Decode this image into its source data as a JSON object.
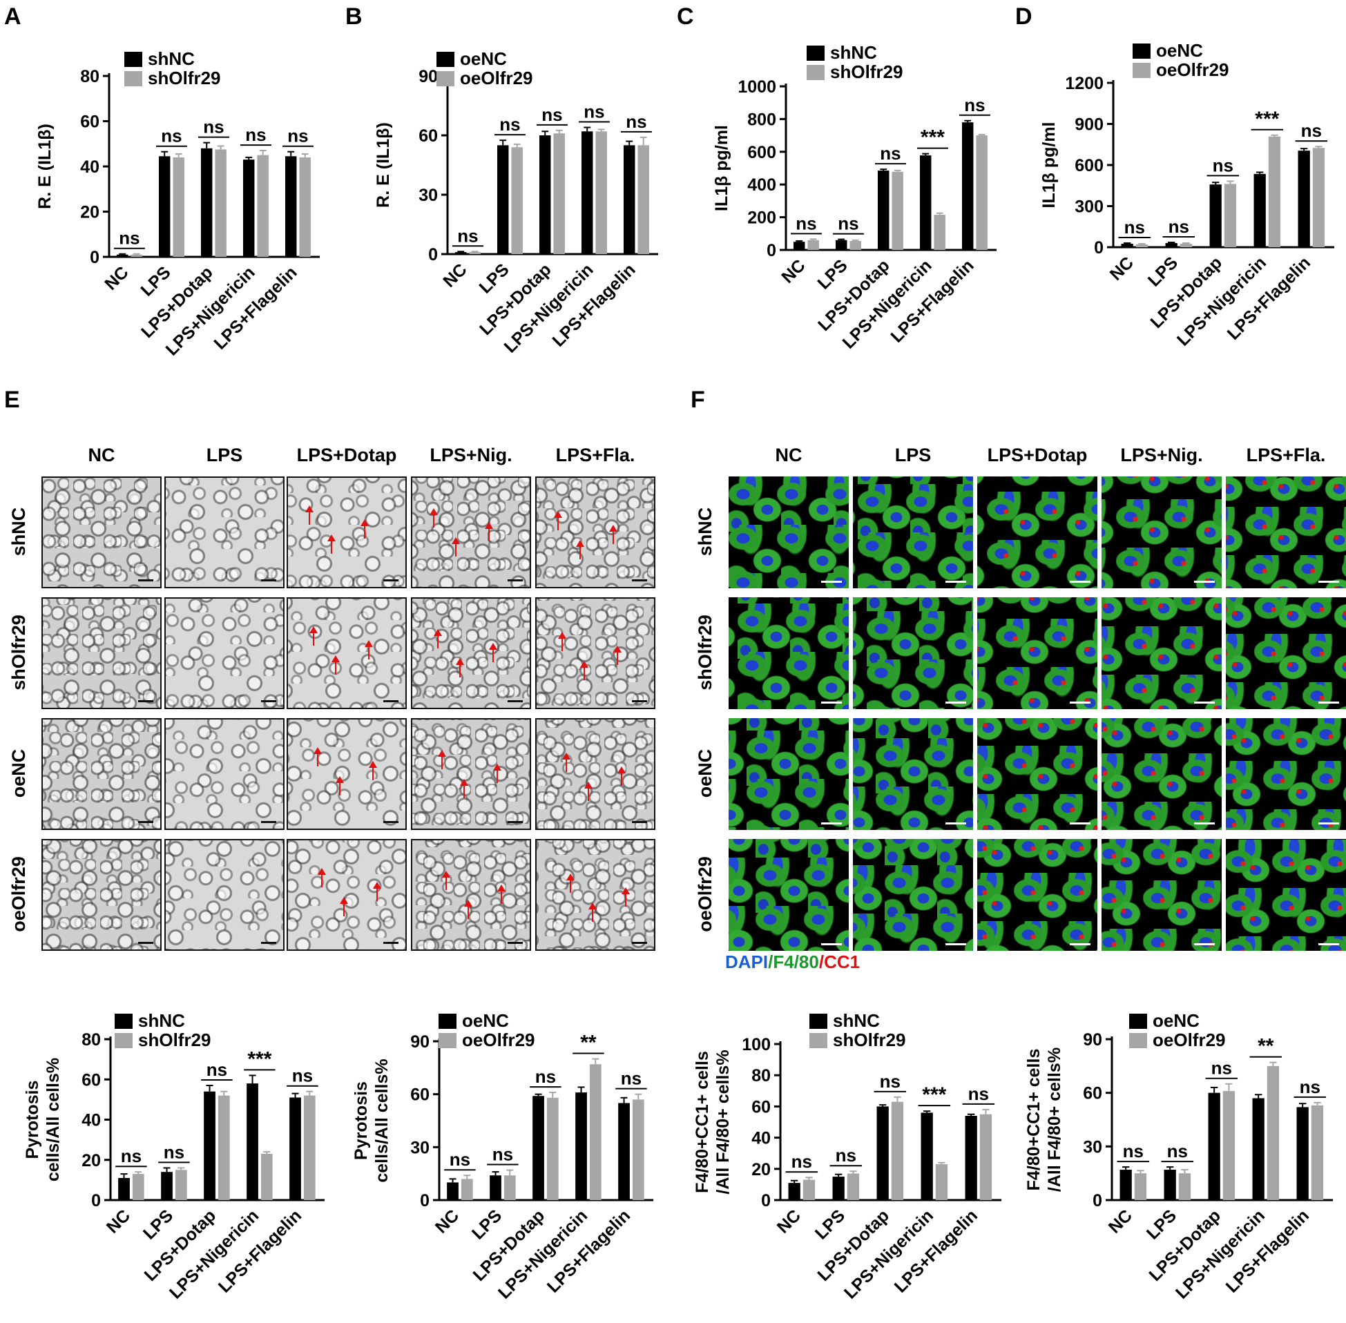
{
  "panel_labels": [
    "A",
    "B",
    "C",
    "D",
    "E",
    "F"
  ],
  "chart_data": [
    {
      "id": "A",
      "type": "bar",
      "ylabel": "R. E (IL1β)",
      "ylim": [
        0,
        80
      ],
      "yticks": [
        "0",
        "20",
        "40",
        "60",
        "80"
      ],
      "categories": [
        "NC",
        "LPS",
        "LPS+Dotap",
        "LPS+Nigericin",
        "LPS+Flagelin"
      ],
      "series": [
        {
          "name": "shNC",
          "color": "#000000",
          "values": [
            1,
            44.5,
            48,
            43,
            44.5
          ],
          "errors": [
            0.3,
            2,
            2.5,
            1,
            2
          ]
        },
        {
          "name": "shOlfr29",
          "color": "#a6a6a6",
          "values": [
            1,
            44,
            47.5,
            45,
            44
          ],
          "errors": [
            0.3,
            1.5,
            1.5,
            2,
            1.5
          ]
        }
      ],
      "annotations": [
        "ns",
        "ns",
        "ns",
        "ns",
        "ns"
      ]
    },
    {
      "id": "B",
      "type": "bar",
      "ylabel": "R. E (IL1β)",
      "ylim": [
        0,
        90
      ],
      "yticks": [
        "0",
        "30",
        "60",
        "90"
      ],
      "categories": [
        "NC",
        "LPS",
        "LPS+Dotap",
        "LPS+Nigericin",
        "LPS+Flagelin"
      ],
      "series": [
        {
          "name": "oeNC",
          "color": "#000000",
          "values": [
            1,
            55,
            60,
            62,
            55
          ],
          "errors": [
            0.3,
            2.5,
            2,
            2,
            2
          ]
        },
        {
          "name": "oeOlfr29",
          "color": "#a6a6a6",
          "values": [
            1,
            54,
            61,
            62,
            55
          ],
          "errors": [
            0.3,
            1.5,
            1.5,
            1,
            4
          ]
        }
      ],
      "annotations": [
        "ns",
        "ns",
        "ns",
        "ns",
        "ns"
      ]
    },
    {
      "id": "C",
      "type": "bar",
      "ylabel": "IL1β pg/ml",
      "ylim": [
        0,
        1000
      ],
      "yticks": [
        "0",
        "200",
        "400",
        "600",
        "800",
        "1000"
      ],
      "categories": [
        "NC",
        "LPS",
        "LPS+Dotap",
        "LPS+Nigericin",
        "LPS+Flagelin"
      ],
      "series": [
        {
          "name": "shNC",
          "color": "#000000",
          "values": [
            50,
            60,
            485,
            578,
            780
          ],
          "errors": [
            5,
            5,
            8,
            10,
            10
          ]
        },
        {
          "name": "shOlfr29",
          "color": "#a6a6a6",
          "values": [
            60,
            55,
            478,
            215,
            700
          ],
          "errors": [
            6,
            5,
            8,
            10,
            5
          ]
        }
      ],
      "annotations": [
        "ns",
        "ns",
        "ns",
        "***",
        "ns"
      ]
    },
    {
      "id": "D",
      "type": "bar",
      "ylabel": "IL1β pg/ml",
      "ylim": [
        0,
        1200
      ],
      "yticks": [
        "0",
        "300",
        "600",
        "900",
        "1200"
      ],
      "categories": [
        "NC",
        "LPS",
        "LPS+Dotap",
        "LPS+Nigericin",
        "LPS+Flagelin"
      ],
      "series": [
        {
          "name": "oeNC",
          "color": "#000000",
          "values": [
            25,
            30,
            458,
            535,
            705
          ],
          "errors": [
            5,
            5,
            15,
            12,
            15
          ]
        },
        {
          "name": "oeOlfr29",
          "color": "#a6a6a6",
          "values": [
            20,
            25,
            462,
            808,
            725
          ],
          "errors": [
            5,
            5,
            20,
            10,
            10
          ]
        }
      ],
      "annotations": [
        "ns",
        "ns",
        "ns",
        "***",
        "ns"
      ]
    },
    {
      "id": "E1",
      "type": "bar",
      "ylabel": [
        "Pyrotosis",
        "cells/All cells%"
      ],
      "ylim": [
        0,
        80
      ],
      "yticks": [
        "0",
        "20",
        "40",
        "60",
        "80"
      ],
      "categories": [
        "NC",
        "LPS",
        "LPS+Dotap",
        "LPS+Nigericin",
        "LPS+Flagelin"
      ],
      "series": [
        {
          "name": "shNC",
          "color": "#000000",
          "values": [
            11,
            14,
            54,
            58,
            51
          ],
          "errors": [
            2,
            2,
            3,
            4,
            2
          ]
        },
        {
          "name": "shOlfr29",
          "color": "#a6a6a6",
          "values": [
            13,
            15,
            52,
            23,
            52
          ],
          "errors": [
            1,
            1,
            2,
            1,
            2
          ]
        }
      ],
      "annotations": [
        "ns",
        "ns",
        "ns",
        "***",
        "ns"
      ]
    },
    {
      "id": "E2",
      "type": "bar",
      "ylabel": [
        "Pyrotosis",
        "cells/All cells%"
      ],
      "ylim": [
        0,
        90
      ],
      "yticks": [
        "0",
        "30",
        "60",
        "90"
      ],
      "categories": [
        "NC",
        "LPS",
        "LPS+Dotap",
        "LPS+Nigericin",
        "LPS+Flagelin"
      ],
      "series": [
        {
          "name": "oeNC",
          "color": "#000000",
          "values": [
            10,
            14,
            59,
            61,
            55
          ],
          "errors": [
            2,
            2,
            1,
            3,
            3
          ]
        },
        {
          "name": "oeOlfr29",
          "color": "#a6a6a6",
          "values": [
            12,
            14,
            58,
            77,
            57
          ],
          "errors": [
            2,
            3,
            3,
            3,
            3
          ]
        }
      ],
      "annotations": [
        "ns",
        "ns",
        "ns",
        "**",
        "ns"
      ]
    },
    {
      "id": "F1",
      "type": "bar",
      "ylabel": [
        "F4/80+CC1+ cells",
        "/All F4/80+ cells%"
      ],
      "ylim": [
        0,
        100
      ],
      "yticks": [
        "0",
        "20",
        "40",
        "60",
        "80",
        "100"
      ],
      "categories": [
        "NC",
        "LPS",
        "LPS+Dotap",
        "LPS+Nigericin",
        "LPS+Flagelin"
      ],
      "series": [
        {
          "name": "shNC",
          "color": "#000000",
          "values": [
            11,
            15,
            60,
            56,
            54
          ],
          "errors": [
            1.5,
            1.5,
            1,
            1,
            1
          ]
        },
        {
          "name": "shOlfr29",
          "color": "#a6a6a6",
          "values": [
            13,
            17,
            63,
            23,
            55
          ],
          "errors": [
            1.5,
            1.5,
            3,
            1,
            3
          ]
        }
      ],
      "annotations": [
        "ns",
        "ns",
        "ns",
        "***",
        "ns"
      ]
    },
    {
      "id": "F2",
      "type": "bar",
      "ylabel": [
        "F4/80+CC1+ cells",
        "/All F4/80+ cells%"
      ],
      "ylim": [
        0,
        90
      ],
      "yticks": [
        "0",
        "30",
        "60",
        "90"
      ],
      "categories": [
        "NC",
        "LPS",
        "LPS+Dotap",
        "LPS+Nigericin",
        "LPS+Flagelin"
      ],
      "series": [
        {
          "name": "oeNC",
          "color": "#000000",
          "values": [
            17,
            17,
            60,
            57,
            52
          ],
          "errors": [
            1.5,
            1.5,
            3,
            2,
            2
          ]
        },
        {
          "name": "oeOlfr29",
          "color": "#a6a6a6",
          "values": [
            15,
            15,
            61,
            75,
            53
          ],
          "errors": [
            1.5,
            2,
            4,
            2,
            1.5
          ]
        }
      ],
      "annotations": [
        "ns",
        "ns",
        "ns",
        "**",
        "ns"
      ]
    }
  ],
  "micrographs": {
    "columns_E": [
      "NC",
      "LPS",
      "LPS+Dotap",
      "LPS+Nig.",
      "LPS+Fla."
    ],
    "columns_F": [
      "NC",
      "LPS",
      "LPS+Dotap",
      "LPS+Nig.",
      "LPS+Fla."
    ],
    "rows": [
      "shNC",
      "shOlfr29",
      "oeNC",
      "oeOlfr29"
    ],
    "fluo_legend": [
      {
        "text": "DAPI",
        "color": "#1a5fd0"
      },
      {
        "text": "/F4/80",
        "color": "#1a9a2a"
      },
      {
        "text": "/CC1",
        "color": "#e01010"
      }
    ]
  }
}
